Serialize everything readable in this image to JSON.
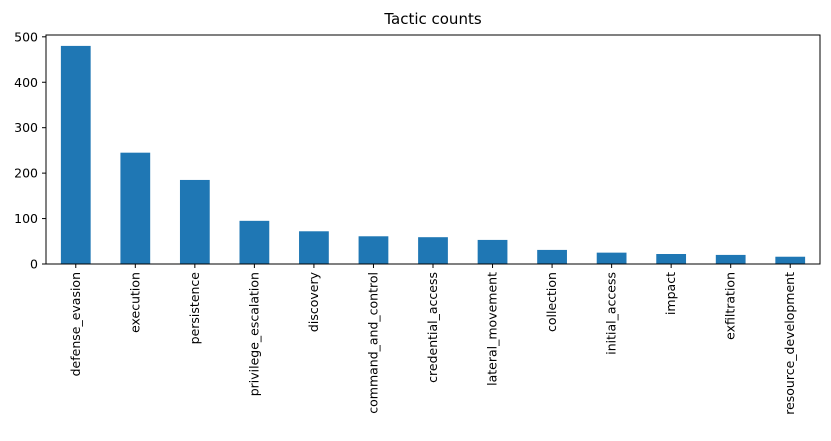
{
  "chart_data": {
    "type": "bar",
    "title": "Tactic counts",
    "xlabel": "",
    "ylabel": "",
    "categories": [
      "defense_evasion",
      "execution",
      "persistence",
      "privilege_escalation",
      "discovery",
      "command_and_control",
      "credential_access",
      "lateral_movement",
      "collection",
      "initial_access",
      "impact",
      "exfiltration",
      "resource_development"
    ],
    "values": [
      480,
      245,
      185,
      95,
      72,
      61,
      59,
      53,
      31,
      25,
      22,
      20,
      16
    ],
    "ylim": [
      0,
      504
    ],
    "yticks": [
      0,
      100,
      200,
      300,
      400,
      500
    ],
    "bar_color": "#1f77b4",
    "grid": false,
    "legend": "none"
  }
}
